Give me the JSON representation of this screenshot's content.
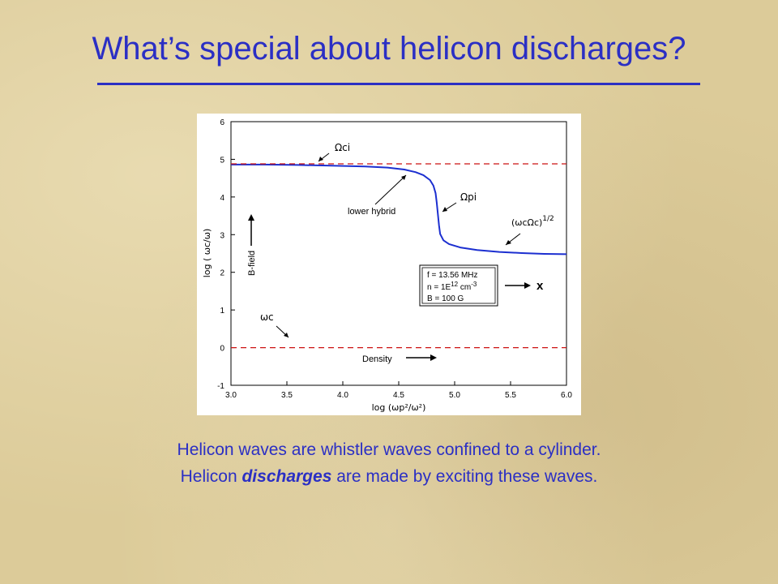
{
  "slide": {
    "title": "What’s special about helicon discharges?",
    "caption_line1": "Helicon waves are whistler waves confined to a cylinder.",
    "caption_line2_pre": "Helicon ",
    "caption_line2_em": "discharges",
    "caption_line2_post": " are made by exciting these waves."
  },
  "colors": {
    "title": "#2b2fc4",
    "curve": "#1c2fd0",
    "reference_line": "#cc1111",
    "background": "#dccb99"
  },
  "chart_data": {
    "type": "line",
    "title": "",
    "xlabel": "log (ωp²/ω²)",
    "ylabel": "log ( ωc/ω)",
    "xlim": [
      3.0,
      6.0
    ],
    "ylim": [
      -1,
      6
    ],
    "xticks": [
      "3.0",
      "3.5",
      "4.0",
      "4.5",
      "5.0",
      "5.5",
      "6.0"
    ],
    "yticks": [
      "-1",
      "0",
      "1",
      "2",
      "3",
      "4",
      "5",
      "6"
    ],
    "grid": false,
    "legend": "none",
    "series": [
      {
        "style": "solid",
        "x": [
          3.0,
          3.3,
          3.6,
          3.9,
          4.2,
          4.4,
          4.55,
          4.65,
          4.72,
          4.78,
          4.81,
          4.83,
          4.84,
          4.85,
          4.86,
          4.87,
          4.9,
          4.95,
          5.05,
          5.2,
          5.4,
          5.6,
          5.8,
          6.0
        ],
        "y": [
          4.86,
          4.86,
          4.85,
          4.83,
          4.81,
          4.78,
          4.73,
          4.66,
          4.58,
          4.45,
          4.3,
          4.1,
          3.85,
          3.55,
          3.25,
          3.02,
          2.85,
          2.75,
          2.66,
          2.59,
          2.54,
          2.51,
          2.49,
          2.48
        ]
      },
      {
        "style": "dashed",
        "x": [
          3.0,
          6.0
        ],
        "y": [
          4.88,
          4.88
        ]
      },
      {
        "style": "dashed",
        "x": [
          3.0,
          6.0
        ],
        "y": [
          0.0,
          0.0
        ]
      }
    ],
    "annotations": {
      "omega_ci": "Ωci",
      "omega_pi": "Ωpi",
      "lower_hybrid": "lower hybrid",
      "hybrid_root": "(ωcΩc)",
      "hybrid_root_exp": "1/2",
      "omega_c": "ωc",
      "b_field": "B-field",
      "density": "Density",
      "params": [
        "f = 13.56 MHz",
        "n = 1E",
        "12",
        " cm",
        "-3",
        "B = 100 G"
      ],
      "x_marker": "x"
    }
  }
}
